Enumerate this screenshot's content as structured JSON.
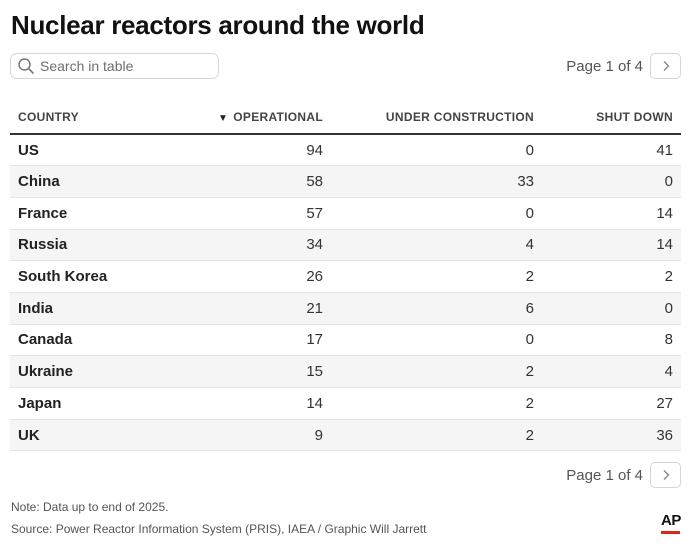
{
  "title": "Nuclear reactors around the world",
  "search": {
    "placeholder": "Search in table"
  },
  "pagination": {
    "top_label": "Page 1 of 4",
    "bottom_label": "Page 1 of 4"
  },
  "table": {
    "columns": [
      "COUNTRY",
      "OPERATIONAL",
      "UNDER CONSTRUCTION",
      "SHUT DOWN"
    ],
    "sort_indicator": "▼",
    "rows": [
      [
        "US",
        "94",
        "0",
        "41"
      ],
      [
        "China",
        "58",
        "33",
        "0"
      ],
      [
        "France",
        "57",
        "0",
        "14"
      ],
      [
        "Russia",
        "34",
        "4",
        "14"
      ],
      [
        "South Korea",
        "26",
        "2",
        "2"
      ],
      [
        "India",
        "21",
        "6",
        "0"
      ],
      [
        "Canada",
        "17",
        "0",
        "8"
      ],
      [
        "Ukraine",
        "15",
        "2",
        "4"
      ],
      [
        "Japan",
        "14",
        "2",
        "27"
      ],
      [
        "UK",
        "9",
        "2",
        "36"
      ]
    ]
  },
  "note": "Note: Data up to end of 2025.",
  "source": "Source: Power Reactor Information System (PRIS), IAEA / Graphic Will Jarrett",
  "logo": "AP",
  "colors": {
    "logo_accent": "#e2231a",
    "header_rule": "#333333",
    "row_alt": "#f5f5f5"
  }
}
